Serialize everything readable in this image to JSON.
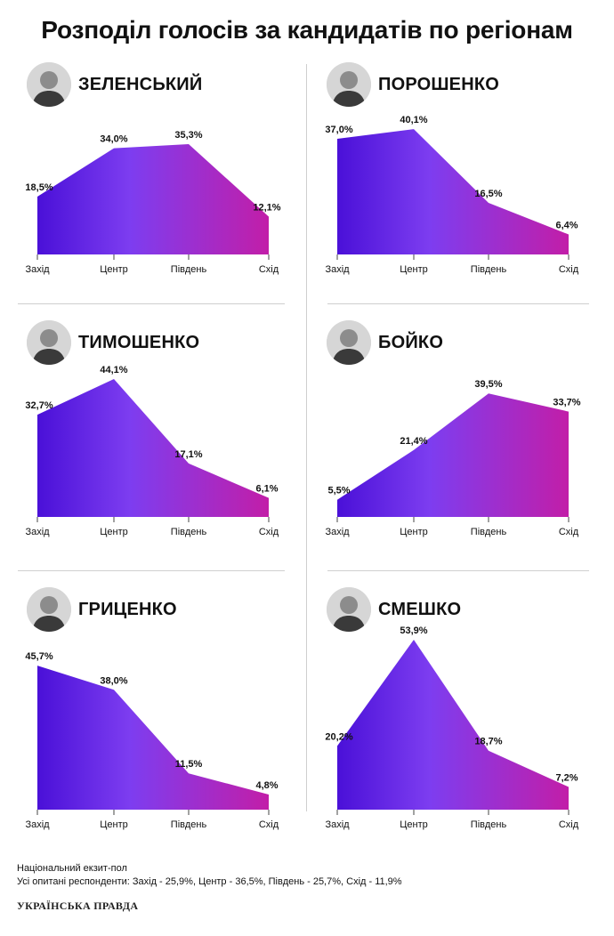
{
  "title": "Розподіл голосів за кандидатів по регіонам",
  "colors": {
    "gradient_start": "#4a10d8",
    "gradient_mid": "#7d3df0",
    "gradient_end": "#c21ea8"
  },
  "chart_data": [
    {
      "type": "area",
      "title": "ЗЕЛЕНСЬКИЙ",
      "categories": [
        "Захід",
        "Центр",
        "Південь",
        "Схід"
      ],
      "values": [
        18.5,
        34.0,
        35.3,
        12.1
      ],
      "labels": [
        "18,5%",
        "34,0%",
        "35,3%",
        "12,1%"
      ]
    },
    {
      "type": "area",
      "title": "ПОРОШЕНКО",
      "categories": [
        "Захід",
        "Центр",
        "Південь",
        "Схід"
      ],
      "values": [
        37.0,
        40.1,
        16.5,
        6.4
      ],
      "labels": [
        "37,0%",
        "40,1%",
        "16,5%",
        "6,4%"
      ]
    },
    {
      "type": "area",
      "title": "ТИМОШЕНКО",
      "categories": [
        "Захід",
        "Центр",
        "Південь",
        "Схід"
      ],
      "values": [
        32.7,
        44.1,
        17.1,
        6.1
      ],
      "labels": [
        "32,7%",
        "44,1%",
        "17,1%",
        "6,1%"
      ]
    },
    {
      "type": "area",
      "title": "БОЙКО",
      "categories": [
        "Захід",
        "Центр",
        "Південь",
        "Схід"
      ],
      "values": [
        5.5,
        21.4,
        39.5,
        33.7
      ],
      "labels": [
        "5,5%",
        "21,4%",
        "39,5%",
        "33,7%"
      ]
    },
    {
      "type": "area",
      "title": "ГРИЦЕНКО",
      "categories": [
        "Захід",
        "Центр",
        "Південь",
        "Схід"
      ],
      "values": [
        45.7,
        38.0,
        11.5,
        4.8
      ],
      "labels": [
        "45,7%",
        "38,0%",
        "11,5%",
        "4,8%"
      ]
    },
    {
      "type": "area",
      "title": "СМЕШКО",
      "categories": [
        "Захід",
        "Центр",
        "Південь",
        "Схід"
      ],
      "values": [
        20.2,
        53.9,
        18.7,
        7.2
      ],
      "labels": [
        "20,2%",
        "53,9%",
        "18,7%",
        "7,2%"
      ]
    }
  ],
  "footer": {
    "line1": "Національний екзит-пол",
    "line2": "Усі опитані респонденти: Захід - 25,9%, Центр - 36,5%, Південь - 25,7%, Схід - 11,9%"
  },
  "logo": "УКРАЇНСЬКА ПРАВДА"
}
